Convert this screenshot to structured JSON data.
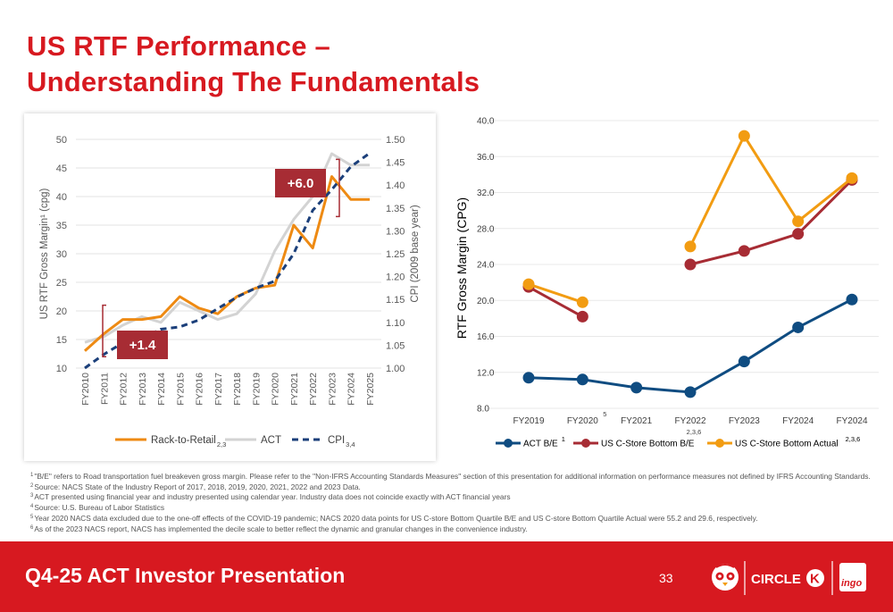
{
  "title": {
    "line1": "US RTF Performance –",
    "line2": "Understanding The Fundamentals"
  },
  "chart_data": [
    {
      "type": "line",
      "x": [
        "FY2010",
        "FY2011",
        "FY2012",
        "FY2013",
        "FY2014",
        "FY2015",
        "FY2016",
        "FY2017",
        "FY2018",
        "FY2019",
        "FY2020",
        "FY2021",
        "FY2022",
        "FY2023",
        "FY2024",
        "FY2025"
      ],
      "ylabel": "US RTF Gross Margin¹ (cpg)",
      "y2label": "CPI (2009 base year)",
      "ylim": [
        10,
        50
      ],
      "y2lim": [
        1.0,
        1.5
      ],
      "yticks": [
        "50",
        "45",
        "40",
        "35",
        "30",
        "25",
        "20",
        "15",
        "10"
      ],
      "y2ticks": [
        "1.50",
        "1.45",
        "1.40",
        "1.35",
        "1.30",
        "1.25",
        "1.20",
        "1.15",
        "1.10",
        "1.05",
        "1.00"
      ],
      "grid": true,
      "legend": "bottom",
      "series": [
        {
          "name": "Rack-to-Retail",
          "sup": "2,3",
          "axis": "left",
          "color": "#ee8a13",
          "style": "solid",
          "values": [
            13,
            16,
            18.5,
            18.5,
            19,
            22.5,
            20.5,
            19.5,
            22.5,
            24,
            24.5,
            35,
            31,
            43.5,
            39.5,
            39.5
          ]
        },
        {
          "name": "ACT",
          "sup": "",
          "axis": "left",
          "color": "#d3d3d3",
          "style": "solid",
          "values": [
            14.5,
            15.5,
            17.5,
            19,
            18,
            21.5,
            20,
            18.5,
            19.5,
            23,
            30.5,
            36,
            40,
            47.5,
            45.5,
            45.5
          ]
        },
        {
          "name": "CPI",
          "sup": "3,4",
          "axis": "right",
          "color": "#1b3f7a",
          "style": "dashed",
          "values": [
            1.0,
            1.03,
            1.055,
            1.065,
            1.085,
            1.09,
            1.105,
            1.13,
            1.155,
            1.175,
            1.19,
            1.25,
            1.345,
            1.39,
            1.44,
            1.47
          ]
        }
      ],
      "annotations": [
        {
          "text": "+6.0",
          "x_from": "FY2023",
          "x_to": "FY2024",
          "color": "#a72c34"
        },
        {
          "text": "+1.4",
          "x_from": "FY2011",
          "x_to": "FY2013",
          "color": "#a72c34"
        }
      ]
    },
    {
      "type": "line",
      "x": [
        "FY2019",
        "FY2020",
        "FY2021",
        "FY2022",
        "FY2023",
        "FY2024",
        "FY2024"
      ],
      "x_notes": [
        "",
        "5",
        "",
        "2,3,6",
        "",
        "",
        ""
      ],
      "ylabel": "RTF Gross Margin (CPG)",
      "ylim": [
        8,
        40
      ],
      "yticks": [
        "40.0",
        "36.0",
        "32.0",
        "28.0",
        "24.0",
        "20.0",
        "16.0",
        "12.0",
        "8.0"
      ],
      "grid": true,
      "legend": "bottom",
      "series": [
        {
          "name": "ACT B/E",
          "sup": "1",
          "color": "#0f4c81",
          "values": [
            11.4,
            11.2,
            10.3,
            9.8,
            13.2,
            17.0,
            20.1
          ]
        },
        {
          "name": "US C-Store Bottom B/E",
          "sup": "",
          "color": "#a72c34",
          "values": [
            21.5,
            18.2,
            null,
            24.0,
            25.5,
            27.4,
            33.4
          ]
        },
        {
          "name": "US C-Store Bottom Actual",
          "sup": "2,3,6",
          "color": "#f29c12",
          "values": [
            21.8,
            19.8,
            null,
            26.0,
            38.3,
            28.8,
            33.6
          ]
        }
      ]
    }
  ],
  "footnotes": [
    {
      "sup": "1",
      "text": "\"B/E\" refers to Road transportation fuel breakeven gross margin. Please refer to the \"Non-IFRS Accounting Standards Measures\" section of this presentation for additional information on performance measures not defined by IFRS Accounting Standards."
    },
    {
      "sup": "2",
      "text": "Source: NACS State of the Industry Report of 2017, 2018, 2019, 2020, 2021, 2022 and 2023 Data."
    },
    {
      "sup": "3",
      "text": "ACT presented using financial year and industry presented using calendar year. Industry data does not coincide exactly with ACT financial years"
    },
    {
      "sup": "4",
      "text": "Source: U.S. Bureau of Labor Statistics"
    },
    {
      "sup": "5",
      "text": "Year 2020 NACS data excluded due to the one-off effects of the COVID-19 pandemic; NACS 2020 data points for US C-store Bottom Quartile B/E and US C-store Bottom Quartile Actual were 55.2 and 29.6, respectively."
    },
    {
      "sup": "6",
      "text": "As of the 2023 NACS report, NACS has implemented the decile scale to better reflect the dynamic and granular changes in the convenience industry."
    }
  ],
  "footer": {
    "title": "Q4-25 ACT Investor Presentation",
    "page": "33",
    "logos": {
      "circle_k": "CIRCLE",
      "circle_k_letter": "K",
      "ingo": "ingo"
    },
    "colors": {
      "brand_red": "#d71920"
    }
  }
}
